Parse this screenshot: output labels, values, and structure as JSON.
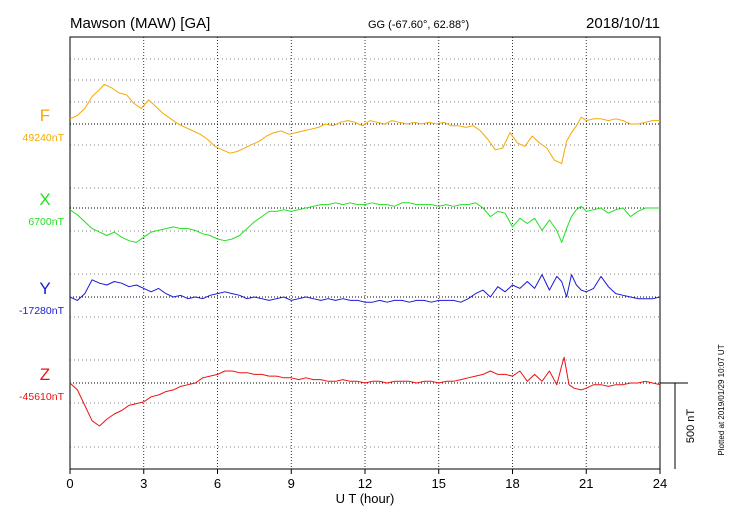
{
  "header": {
    "station": "Mawson (MAW)  [GA]",
    "coords": "GG (-67.60°,  62.88°)",
    "date": "2018/10/11"
  },
  "footer": {
    "plotted": "Plotted at 2019/01/29 10:07 UT",
    "scale_label": "500 nT"
  },
  "chart_data": {
    "type": "line",
    "xlabel": "U T (hour)",
    "xlim": [
      0,
      24
    ],
    "xticks": [
      0,
      3,
      6,
      9,
      12,
      15,
      18,
      21,
      24
    ],
    "scale_nT": 500,
    "grid": true,
    "series": [
      {
        "name": "F",
        "baseline_label": "49240nT",
        "baseline": 49240,
        "color": "#f5a800",
        "x": [
          0,
          0.3,
          0.6,
          0.9,
          1.2,
          1.4,
          1.7,
          2,
          2.3,
          2.6,
          2.9,
          3.2,
          3.5,
          3.8,
          4.1,
          4.4,
          4.7,
          5,
          5.3,
          5.6,
          5.9,
          6.2,
          6.5,
          6.8,
          7.1,
          7.4,
          7.7,
          8,
          8.3,
          8.6,
          8.9,
          9.2,
          9.5,
          9.8,
          10.1,
          10.4,
          10.7,
          11,
          11.3,
          11.6,
          11.9,
          12.2,
          12.5,
          12.8,
          13.1,
          13.4,
          13.7,
          14,
          14.3,
          14.6,
          14.9,
          15.2,
          15.5,
          15.8,
          16.1,
          16.4,
          16.7,
          17,
          17.3,
          17.6,
          17.9,
          18.2,
          18.5,
          18.8,
          19.1,
          19.4,
          19.7,
          20,
          20.2,
          20.4,
          20.6,
          20.8,
          21,
          21.3,
          21.6,
          21.9,
          22.2,
          22.5,
          22.8,
          23.1,
          23.4,
          23.7,
          24
        ],
        "y": [
          49270,
          49290,
          49330,
          49400,
          49440,
          49470,
          49450,
          49420,
          49410,
          49360,
          49330,
          49380,
          49340,
          49300,
          49270,
          49240,
          49220,
          49200,
          49180,
          49150,
          49110,
          49090,
          49070,
          49080,
          49100,
          49120,
          49140,
          49170,
          49190,
          49200,
          49180,
          49190,
          49200,
          49210,
          49220,
          49240,
          49230,
          49250,
          49260,
          49250,
          49230,
          49260,
          49250,
          49240,
          49260,
          49250,
          49240,
          49250,
          49240,
          49250,
          49240,
          49250,
          49230,
          49230,
          49220,
          49230,
          49200,
          49150,
          49090,
          49100,
          49190,
          49130,
          49110,
          49170,
          49130,
          49100,
          49030,
          49010,
          49140,
          49190,
          49230,
          49280,
          49260,
          49270,
          49270,
          49260,
          49270,
          49260,
          49240,
          49240,
          49250,
          49260,
          49260
        ]
      },
      {
        "name": "X",
        "baseline_label": "6700nT",
        "baseline": 6700,
        "color": "#22e022",
        "x": [
          0,
          0.3,
          0.6,
          0.9,
          1.2,
          1.5,
          1.8,
          2.1,
          2.4,
          2.7,
          3,
          3.3,
          3.6,
          3.9,
          4.2,
          4.5,
          4.8,
          5.1,
          5.4,
          5.7,
          6,
          6.3,
          6.6,
          6.9,
          7.2,
          7.5,
          7.8,
          8.1,
          8.4,
          8.7,
          9,
          9.3,
          9.6,
          9.9,
          10.2,
          10.5,
          10.8,
          11.1,
          11.4,
          11.7,
          12,
          12.3,
          12.6,
          12.9,
          13.2,
          13.5,
          13.8,
          14.1,
          14.4,
          14.7,
          15,
          15.3,
          15.6,
          15.9,
          16.2,
          16.5,
          16.8,
          17.1,
          17.4,
          17.7,
          18,
          18.3,
          18.6,
          18.9,
          19.2,
          19.5,
          19.8,
          20,
          20.2,
          20.4,
          20.6,
          20.8,
          21,
          21.3,
          21.6,
          21.9,
          22.2,
          22.5,
          22.8,
          23.1,
          23.4,
          23.7,
          24
        ],
        "y": [
          6690,
          6660,
          6620,
          6580,
          6560,
          6540,
          6560,
          6530,
          6510,
          6500,
          6530,
          6560,
          6570,
          6580,
          6590,
          6580,
          6580,
          6570,
          6550,
          6540,
          6520,
          6510,
          6520,
          6540,
          6580,
          6620,
          6650,
          6680,
          6680,
          6690,
          6680,
          6690,
          6700,
          6710,
          6720,
          6720,
          6730,
          6720,
          6730,
          6720,
          6720,
          6730,
          6720,
          6720,
          6710,
          6730,
          6730,
          6720,
          6720,
          6720,
          6710,
          6720,
          6710,
          6720,
          6720,
          6730,
          6700,
          6650,
          6680,
          6670,
          6590,
          6640,
          6610,
          6640,
          6570,
          6630,
          6570,
          6500,
          6580,
          6650,
          6690,
          6710,
          6680,
          6690,
          6700,
          6670,
          6690,
          6700,
          6650,
          6680,
          6700,
          6700,
          6700
        ]
      },
      {
        "name": "Y",
        "baseline_label": "-17280nT",
        "baseline": -17280,
        "color": "#1a1ad6",
        "x": [
          0,
          0.3,
          0.6,
          0.9,
          1.2,
          1.5,
          1.8,
          2.1,
          2.4,
          2.7,
          3,
          3.3,
          3.6,
          3.9,
          4.2,
          4.5,
          4.8,
          5.1,
          5.4,
          5.7,
          6,
          6.3,
          6.6,
          6.9,
          7.2,
          7.5,
          7.8,
          8.1,
          8.4,
          8.7,
          9,
          9.3,
          9.6,
          9.9,
          10.2,
          10.5,
          10.8,
          11.1,
          11.4,
          11.7,
          12,
          12.3,
          12.6,
          12.9,
          13.2,
          13.5,
          13.8,
          14.1,
          14.4,
          14.7,
          15,
          15.3,
          15.6,
          15.9,
          16.2,
          16.5,
          16.8,
          17.1,
          17.4,
          17.7,
          18,
          18.3,
          18.6,
          18.9,
          19.2,
          19.5,
          19.8,
          20,
          20.2,
          20.4,
          20.6,
          20.8,
          21,
          21.3,
          21.6,
          21.9,
          22.2,
          22.5,
          22.8,
          23.1,
          23.4,
          23.7,
          24
        ],
        "y": [
          -17280,
          -17300,
          -17260,
          -17180,
          -17200,
          -17210,
          -17190,
          -17200,
          -17220,
          -17210,
          -17230,
          -17250,
          -17230,
          -17260,
          -17280,
          -17270,
          -17290,
          -17280,
          -17290,
          -17270,
          -17260,
          -17250,
          -17260,
          -17270,
          -17290,
          -17280,
          -17290,
          -17300,
          -17290,
          -17280,
          -17300,
          -17290,
          -17280,
          -17290,
          -17300,
          -17290,
          -17300,
          -17290,
          -17300,
          -17300,
          -17310,
          -17310,
          -17300,
          -17310,
          -17300,
          -17300,
          -17310,
          -17300,
          -17300,
          -17310,
          -17300,
          -17300,
          -17300,
          -17310,
          -17290,
          -17260,
          -17240,
          -17280,
          -17220,
          -17250,
          -17210,
          -17230,
          -17190,
          -17230,
          -17150,
          -17240,
          -17160,
          -17190,
          -17280,
          -17150,
          -17210,
          -17240,
          -17250,
          -17230,
          -17160,
          -17220,
          -17260,
          -17270,
          -17280,
          -17290,
          -17290,
          -17290,
          -17280
        ]
      },
      {
        "name": "Z",
        "baseline_label": "-45610nT",
        "baseline": -45610,
        "color": "#ee1111",
        "x": [
          0,
          0.3,
          0.6,
          0.9,
          1.2,
          1.5,
          1.8,
          2.1,
          2.4,
          2.7,
          3,
          3.3,
          3.6,
          3.9,
          4.2,
          4.5,
          4.8,
          5.1,
          5.4,
          5.7,
          6,
          6.3,
          6.6,
          6.9,
          7.2,
          7.5,
          7.8,
          8.1,
          8.4,
          8.7,
          9,
          9.3,
          9.6,
          9.9,
          10.2,
          10.5,
          10.8,
          11.1,
          11.4,
          11.7,
          12,
          12.3,
          12.6,
          12.9,
          13.2,
          13.5,
          13.8,
          14.1,
          14.4,
          14.7,
          15,
          15.3,
          15.6,
          15.9,
          16.2,
          16.5,
          16.8,
          17.1,
          17.4,
          17.7,
          18,
          18.3,
          18.6,
          18.9,
          19.2,
          19.5,
          19.8,
          20,
          20.1,
          20.3,
          20.5,
          20.8,
          21,
          21.3,
          21.6,
          21.9,
          22.2,
          22.5,
          22.8,
          23.1,
          23.4,
          23.7,
          24
        ],
        "y": [
          -45610,
          -45650,
          -45740,
          -45830,
          -45860,
          -45820,
          -45790,
          -45770,
          -45740,
          -45730,
          -45720,
          -45690,
          -45680,
          -45660,
          -45650,
          -45630,
          -45620,
          -45610,
          -45580,
          -45570,
          -45560,
          -45540,
          -45540,
          -45550,
          -45550,
          -45560,
          -45560,
          -45570,
          -45570,
          -45580,
          -45580,
          -45590,
          -45580,
          -45590,
          -45590,
          -45600,
          -45600,
          -45590,
          -45600,
          -45600,
          -45610,
          -45600,
          -45600,
          -45610,
          -45600,
          -45600,
          -45600,
          -45610,
          -45600,
          -45600,
          -45610,
          -45600,
          -45600,
          -45590,
          -45580,
          -45570,
          -45560,
          -45540,
          -45560,
          -45560,
          -45570,
          -45540,
          -45600,
          -45560,
          -45600,
          -45540,
          -45620,
          -45510,
          -45460,
          -45620,
          -45640,
          -45650,
          -45640,
          -45620,
          -45620,
          -45630,
          -45620,
          -45620,
          -45610,
          -45610,
          -45600,
          -45610,
          -45620
        ]
      }
    ]
  }
}
